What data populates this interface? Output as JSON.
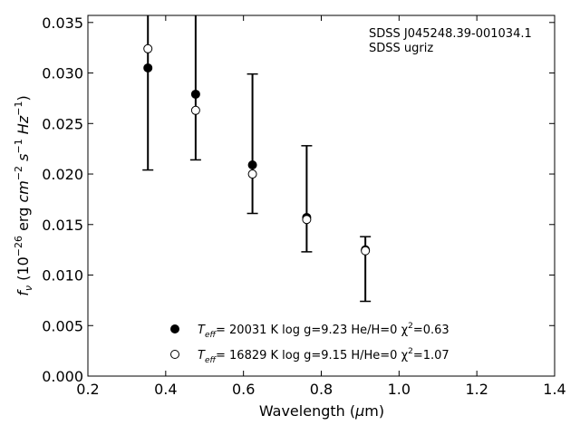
{
  "chart_data": {
    "type": "scatter",
    "xlabel": "Wavelength (μm)",
    "ylabel": "f_ν (10^−26 erg cm^−2 s^−1 Hz^−1)",
    "xlim": [
      0.2,
      1.4
    ],
    "ylim": [
      0.0,
      0.0357
    ],
    "xticks": [
      "0.2",
      "0.4",
      "0.6",
      "0.8",
      "1.0",
      "1.2",
      "1.4"
    ],
    "yticks": [
      "0.000",
      "0.005",
      "0.010",
      "0.015",
      "0.020",
      "0.025",
      "0.030",
      "0.035"
    ],
    "annotation": [
      "SDSS J045248.39-001034.1",
      "SDSS ugriz"
    ],
    "observed": {
      "x": [
        0.3543,
        0.477,
        0.6231,
        0.7625,
        0.9134
      ],
      "y": [
        0.0305,
        0.0279,
        0.0209,
        0.0157,
        0.0125
      ],
      "err_low": [
        0.0204,
        0.0214,
        0.0161,
        0.0123,
        0.0074
      ],
      "err_high": [
        0.0357,
        0.0357,
        0.0299,
        0.0228,
        0.0138
      ]
    },
    "series": [
      {
        "name": "T_eff= 20031 K  log g=9.23  He/H=0  χ²=0.63",
        "marker": "filled-circle",
        "x": [
          0.3543,
          0.477,
          0.6231,
          0.7625,
          0.9134
        ],
        "y": [
          0.0305,
          0.0279,
          0.0209,
          0.0157,
          0.0125
        ]
      },
      {
        "name": "T_eff= 16829 K  log g=9.15  H/He=0  χ²=1.07",
        "marker": "open-circle",
        "x": [
          0.3543,
          0.477,
          0.6231,
          0.7625,
          0.9134
        ],
        "y": [
          0.0324,
          0.0263,
          0.02,
          0.0155,
          0.0124
        ]
      }
    ],
    "legend": {
      "placement": "bottom-center",
      "entries": [
        {
          "teff_label": "T",
          "teff_sub": "eff",
          "rest": "= 20031 K  log g=9.23  He/H=0  χ",
          "sup": "2",
          "tail": "=0.63"
        },
        {
          "teff_label": "T",
          "teff_sub": "eff",
          "rest": "= 16829 K  log g=9.15  H/He=0  χ",
          "sup": "2",
          "tail": "=1.07"
        }
      ]
    },
    "grid": false
  }
}
